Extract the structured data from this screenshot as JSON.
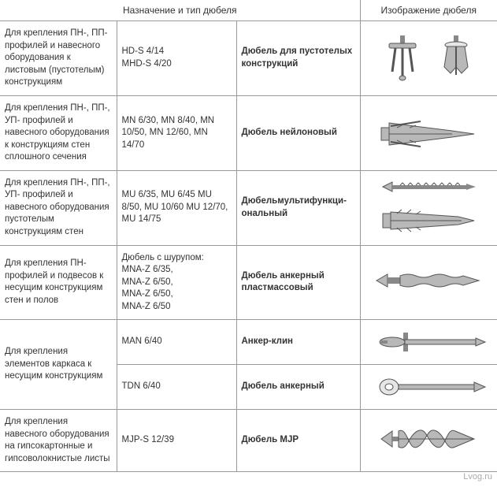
{
  "headers": {
    "left": "Назначение и тип дюбеля",
    "right": "Изображение дюбеля"
  },
  "rows": [
    {
      "purpose": "Для крепления ПН-, ПП-профилей и навесного обору­дования к листовым (пустотелым) конс­трукциям",
      "model": "HD-S 4/14\nMHD-S 4/20",
      "type": "Дюбель для пустотелых конструкций",
      "img": "hollow",
      "rowspan": 1
    },
    {
      "purpose": "Для крепления ПН-, ПП-, УП- профилей и навесного оборудо­вания к конструкциям стен сплошного сечения",
      "model": "MN 6/30, MN 8/40, MN 10/50, MN 12/60, MN 14/70",
      "type": "Дюбель нейлоновый",
      "img": "nylon",
      "rowspan": 1
    },
    {
      "purpose": "Для крепления ПН-, ПП-, УП- профилей и навесного обору­дования пустотелым конструкциям стен",
      "model": "MU 6/35, MU 6/45 MU 8/50, MU 10/60 MU 12/70, MU 14/75",
      "type": "Дюбельмультифункци­ональный",
      "img": "multi",
      "rowspan": 1
    },
    {
      "purpose": "Для крепления ПН-профилей и подвесов к несущим конструкциям стен и полов",
      "model": "Дюбель с шурупом:\nMNA-Z 6/35,\nMNA-Z 6/50,\nMNA-Z 6/50,\nMNA-Z 6/50",
      "type": "Дюбель анкерный пластмассовый",
      "img": "anchor_plastic",
      "rowspan": 1
    },
    {
      "purpose": "Для крепления элементов каркаса к несущим конструк­циям",
      "model": "MAN 6/40",
      "type": "Анкер-клин",
      "img": "wedge",
      "purpose_rowspan": 2
    },
    {
      "purpose": "",
      "model": "TDN 6/40",
      "type": "Дюбель анкерный",
      "img": "anchor",
      "skip_purpose": true
    },
    {
      "purpose": "Для крепления навесного оборудо­вания на гипсокар­тонные и гипсово­локнистые листы",
      "model": "MJP-S 12/39",
      "type": "Дюбель MJP",
      "img": "mjp",
      "rowspan": 1
    }
  ],
  "watermark": "Lvog.ru",
  "colors": {
    "grey_fill": "#b8b8b8",
    "grey_stroke": "#555555",
    "light": "#e6e6e6",
    "dark": "#888888"
  }
}
